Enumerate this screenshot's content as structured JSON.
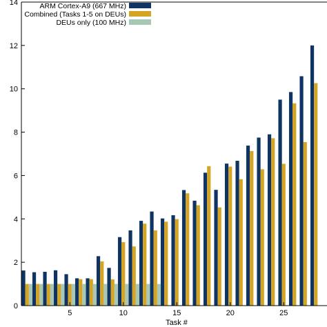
{
  "chart_data": {
    "type": "bar",
    "xlabel": "Task #",
    "ylabel": "",
    "ylim": [
      0,
      14
    ],
    "yticks": [
      0,
      2,
      4,
      6,
      8,
      10,
      12,
      14
    ],
    "ytick_labels": [
      "0",
      "2",
      "4",
      "6",
      "8",
      "10",
      "12",
      "14"
    ],
    "xticks": [
      5,
      10,
      15,
      20,
      25
    ],
    "xtick_labels": [
      "5",
      "10",
      "15",
      "20",
      "25"
    ],
    "categories": [
      1,
      2,
      3,
      4,
      5,
      6,
      7,
      8,
      9,
      10,
      11,
      12,
      13,
      14,
      15,
      16,
      17,
      18,
      19,
      20,
      21,
      22,
      23,
      24,
      25,
      26,
      27,
      28
    ],
    "legend_position": "top-left",
    "series": [
      {
        "name": "ARM Cortex-A9 (667 MHz)",
        "color": "#0f3462",
        "values": [
          1.62,
          1.54,
          1.56,
          1.63,
          1.45,
          1.26,
          1.26,
          2.28,
          1.74,
          3.16,
          3.47,
          3.91,
          4.34,
          4.02,
          4.17,
          5.33,
          4.84,
          6.13,
          5.34,
          6.55,
          6.68,
          7.38,
          7.75,
          7.9,
          9.5,
          9.85,
          10.58,
          12.0
        ]
      },
      {
        "name": "Combined (Tasks 1-5 on DEUs)",
        "color": "#d4a425",
        "values": [
          1.0,
          1.0,
          1.0,
          1.0,
          1.0,
          1.22,
          1.22,
          2.04,
          1.21,
          2.93,
          2.73,
          3.78,
          3.47,
          3.87,
          3.99,
          5.18,
          4.63,
          6.43,
          4.53,
          6.41,
          5.83,
          7.13,
          6.29,
          7.72,
          6.54,
          9.33,
          7.54,
          10.26
        ]
      },
      {
        "name": "DEUs only (100 MHz)",
        "color": "#a8c7b5",
        "values": [
          1.0,
          1.0,
          1.0,
          1.0,
          1.0,
          1.0,
          1.0,
          1.0,
          1.0,
          1.0,
          1.0,
          1.0,
          1.0,
          null,
          null,
          null,
          null,
          null,
          null,
          null,
          null,
          null,
          null,
          null,
          null,
          null,
          null,
          null
        ]
      }
    ]
  }
}
